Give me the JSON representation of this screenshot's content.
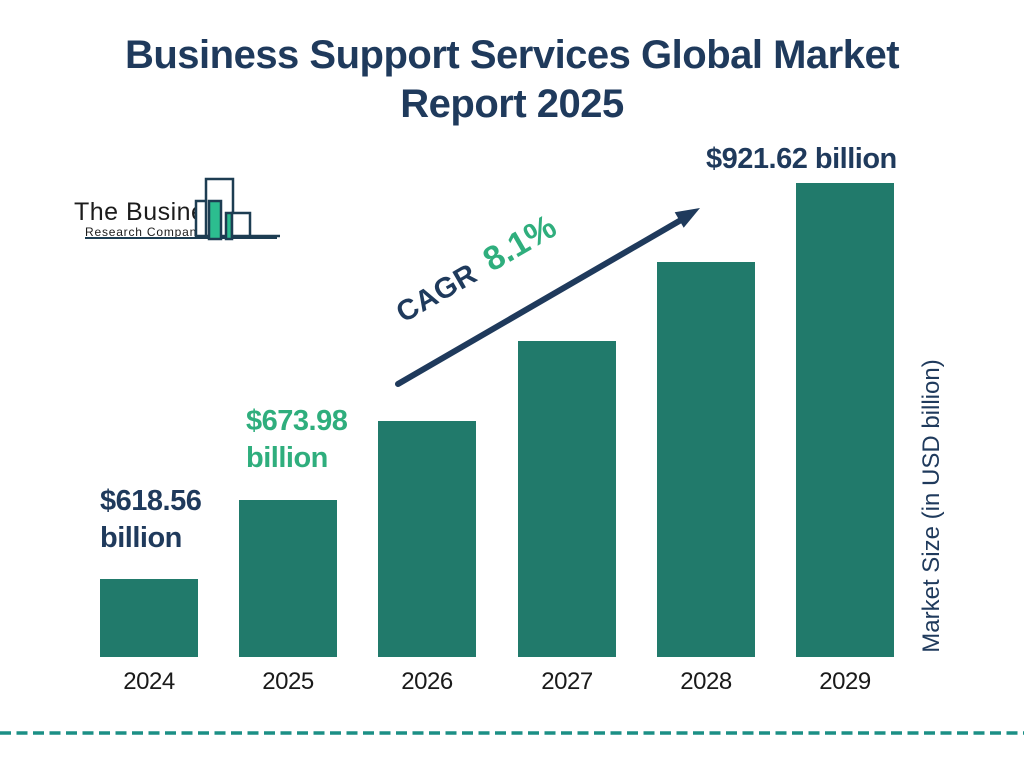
{
  "page": {
    "title": "Business Support Services Global Market Report 2025"
  },
  "logo": {
    "line1": "The Business",
    "line2": "Research Company"
  },
  "chart_data": {
    "type": "bar",
    "title": "Business Support Services Global Market Report 2025",
    "categories": [
      "2024",
      "2025",
      "2026",
      "2027",
      "2028",
      "2029"
    ],
    "values": [
      618.56,
      673.98,
      728.6,
      787.6,
      851.4,
      921.62
    ],
    "values_labeled_on_chart": [
      true,
      true,
      false,
      false,
      false,
      true
    ],
    "unit": "USD billion",
    "ylabel": "Market Size (in USD billion)",
    "xlabel": "",
    "grid": false,
    "legend_position": "none",
    "annotations": [
      {
        "category": "2024",
        "label": "$618.56 billion",
        "color": "#1f3a5c"
      },
      {
        "category": "2025",
        "label": "$673.98 billion",
        "color": "#2fae7d"
      },
      {
        "category": "2029",
        "label": "$921.62 billion",
        "color": "#1f3a5c"
      }
    ],
    "cagr": {
      "prefix": "CAGR",
      "value": "8.1%"
    },
    "bar_color": "#217a6b"
  },
  "colors": {
    "navy": "#1f3a5c",
    "teal_bar": "#217a6b",
    "green_accent": "#2fae7d",
    "logo_teal": "#2cbd8f",
    "dashed_line": "#1b8f85"
  }
}
